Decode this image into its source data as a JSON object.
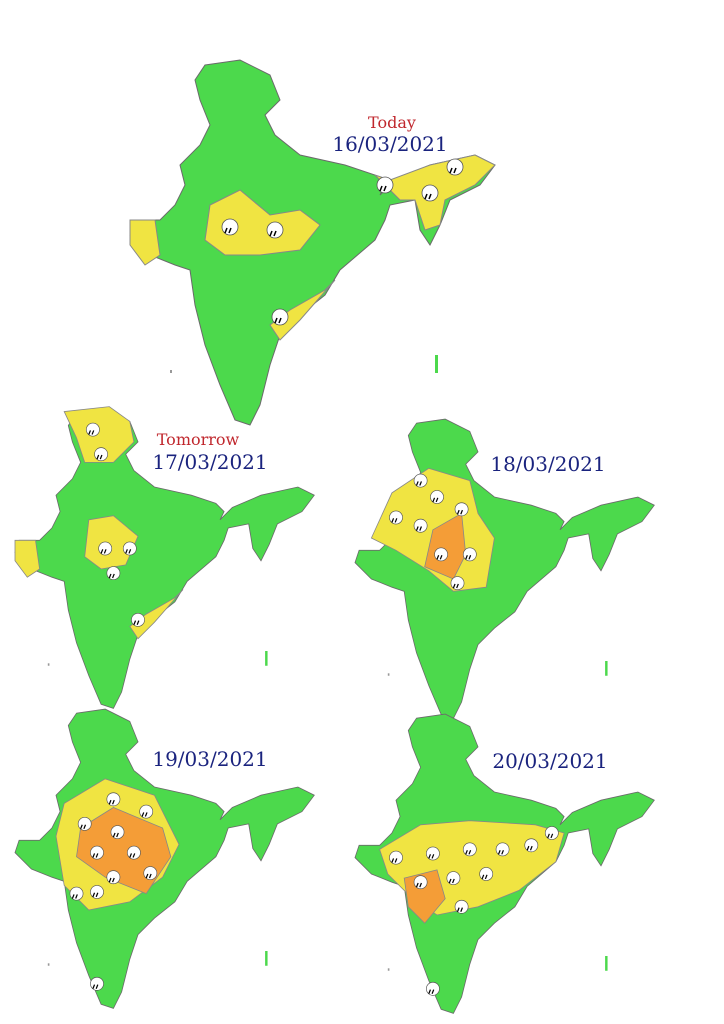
{
  "maps": [
    {
      "label": "Today",
      "date": "16/03/2021"
    },
    {
      "label": "Tomorrow",
      "date": "17/03/2021"
    },
    {
      "date": "18/03/2021"
    },
    {
      "date": "19/03/2021"
    },
    {
      "date": "20/03/2021"
    }
  ]
}
